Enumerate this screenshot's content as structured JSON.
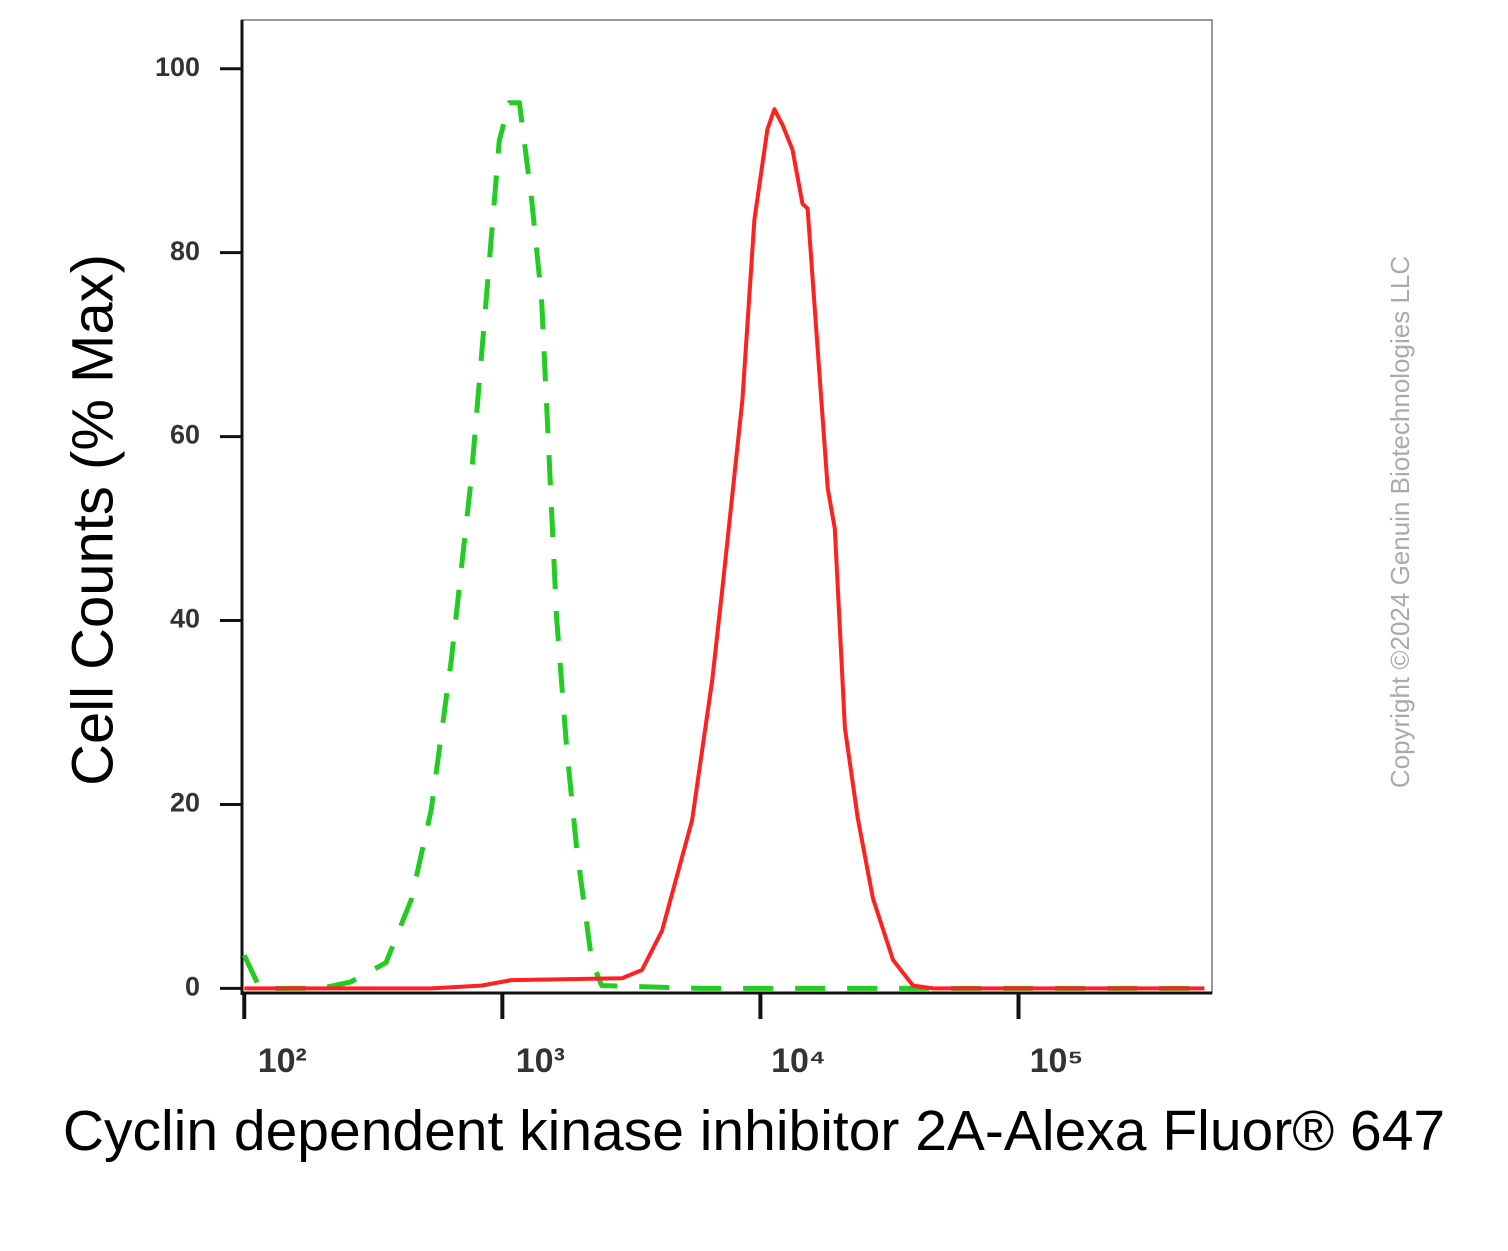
{
  "chart_data": {
    "type": "line",
    "x_label": "Cyclin dependent kinase inhibitor 2A-Alexa Fluor® 647",
    "y_label": "Cell Counts (% Max)",
    "watermark": "Copyright ©2024 Genuin Biotechnologies LLC",
    "xscale": "log",
    "xlim": [
      98,
      562000
    ],
    "ylim": [
      -0.5,
      105.3
    ],
    "xticks": [
      {
        "value": 100,
        "label": "10²"
      },
      {
        "value": 1000,
        "label": "10³"
      },
      {
        "value": 10000,
        "label": "10⁴"
      },
      {
        "value": 100000,
        "label": "10⁵"
      }
    ],
    "yticks": [
      0,
      20,
      40,
      60,
      80,
      100
    ],
    "series": [
      {
        "color": "#22cc22",
        "dash": true,
        "x": [
          100,
          115,
          198,
          258,
          354,
          443,
          530,
          634,
          757,
          866,
          973,
          1064,
          1164,
          1297,
          1418,
          1524,
          1623,
          1775,
          1941,
          2220,
          2427,
          5940,
          35700,
          525000
        ],
        "values": [
          3.6,
          0,
          0,
          0.7,
          2.8,
          9.6,
          19.4,
          35.7,
          55.3,
          74.9,
          92.2,
          96.3,
          96.3,
          85.9,
          75.1,
          56.6,
          40.3,
          26.1,
          15.2,
          3.0,
          0.3,
          0,
          0,
          0
        ]
      },
      {
        "color": "#ff2020",
        "dash": false,
        "x": [
          100,
          530,
          828,
          1084,
          2904,
          3475,
          4159,
          5435,
          6501,
          7112,
          8511,
          9480,
          10640,
          11330,
          12180,
          13310,
          14560,
          15230,
          16660,
          18230,
          19410,
          21240,
          23840,
          27280,
          32650,
          39000,
          46700,
          525000
        ],
        "values": [
          0,
          0,
          0.3,
          0.9,
          1.1,
          2.0,
          6.3,
          18.3,
          33.5,
          43.3,
          64.0,
          83.6,
          93.4,
          95.6,
          93.9,
          91.2,
          85.3,
          84.8,
          69.6,
          54.4,
          50.0,
          28.3,
          18.5,
          9.8,
          3.1,
          0.3,
          0,
          0
        ]
      }
    ]
  }
}
